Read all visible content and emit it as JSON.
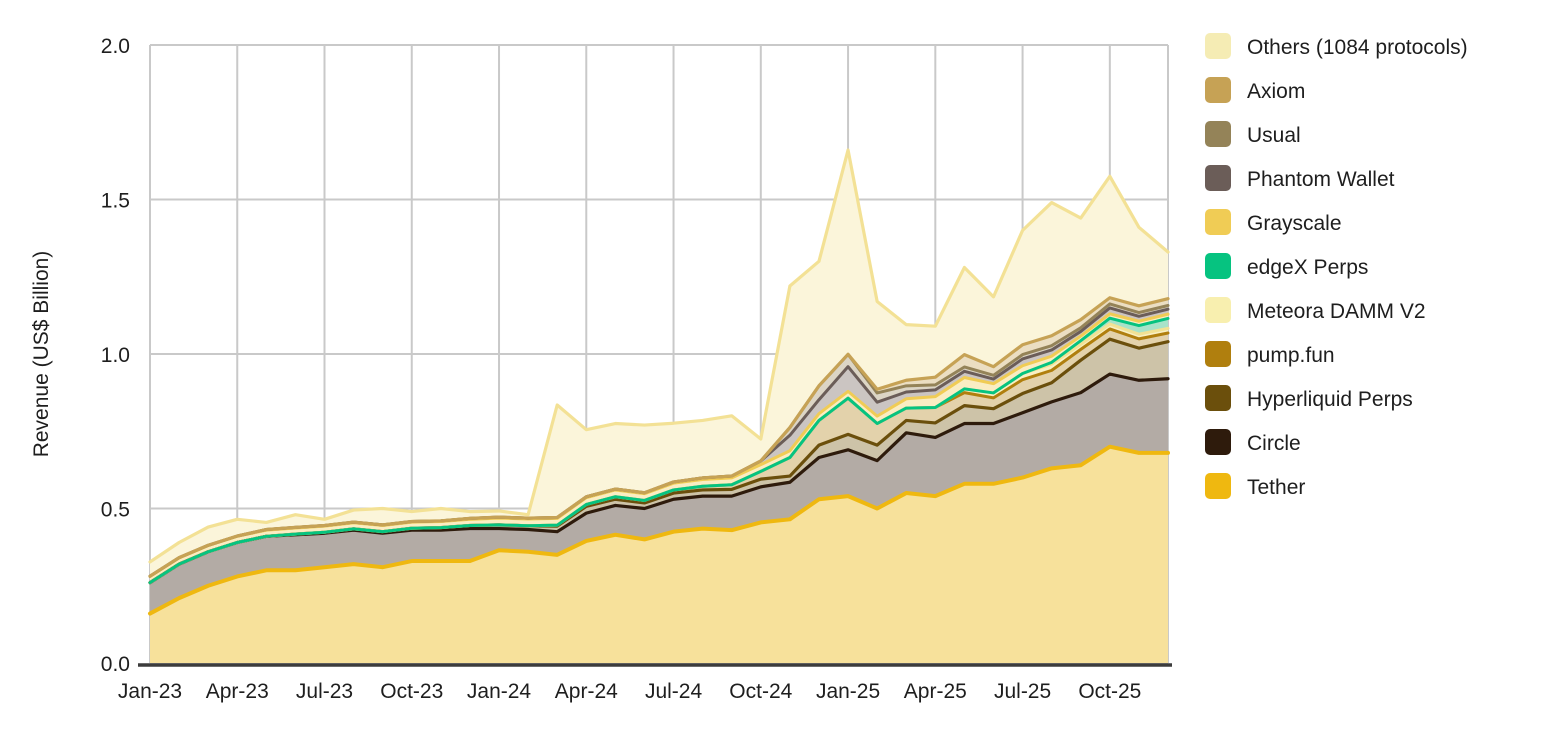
{
  "chart_data": {
    "type": "area",
    "stacked": true,
    "title": "",
    "xlabel": "",
    "ylabel": "Revenue (US$ Billion)",
    "ylim": [
      0,
      2.0
    ],
    "yticks": [
      "0.0",
      "0.5",
      "1.0",
      "1.5",
      "2.0"
    ],
    "ytick_values": [
      0.0,
      0.5,
      1.0,
      1.5,
      2.0
    ],
    "grid": true,
    "legend_position": "right",
    "months": [
      "Jan-23",
      "Feb-23",
      "Mar-23",
      "Apr-23",
      "May-23",
      "Jun-23",
      "Jul-23",
      "Aug-23",
      "Sep-23",
      "Oct-23",
      "Nov-23",
      "Dec-23",
      "Jan-24",
      "Feb-24",
      "Mar-24",
      "Apr-24",
      "May-24",
      "Jun-24",
      "Jul-24",
      "Aug-24",
      "Sep-24",
      "Oct-24",
      "Nov-24",
      "Dec-24",
      "Jan-25",
      "Feb-25",
      "Mar-25",
      "Apr-25",
      "May-25",
      "Jun-25",
      "Jul-25",
      "Aug-25",
      "Sep-25",
      "Oct-25",
      "Nov-25",
      "Dec-25"
    ],
    "x_tick_labels": [
      "Jan-23",
      "Apr-23",
      "Jul-23",
      "Oct-23",
      "Jan-24",
      "Apr-24",
      "Jul-24",
      "Oct-24",
      "Jan-25",
      "Apr-25",
      "Jul-25",
      "Oct-25"
    ],
    "colors": {
      "grid": "#c9c9c9",
      "axis": "#3c3c3c",
      "text": "#1e1e1e",
      "background": "#ffffff"
    },
    "series_bottom_to_top": [
      {
        "key": "tether",
        "name": "Tether",
        "line": "#EFB810",
        "fill": "#F7E19B",
        "swatch": "#EFB810",
        "line_width": 4,
        "values": [
          0.16,
          0.21,
          0.25,
          0.28,
          0.3,
          0.3,
          0.31,
          0.32,
          0.31,
          0.33,
          0.33,
          0.33,
          0.365,
          0.36,
          0.35,
          0.395,
          0.415,
          0.4,
          0.425,
          0.435,
          0.43,
          0.455,
          0.465,
          0.53,
          0.54,
          0.5,
          0.55,
          0.54,
          0.58,
          0.58,
          0.6,
          0.63,
          0.64,
          0.7,
          0.68,
          0.68
        ]
      },
      {
        "key": "circle",
        "name": "Circle",
        "line": "#2E1B0C",
        "fill": "#B3ABA5",
        "swatch": "#2E1B0C",
        "line_width": 3.2,
        "values": [
          0.1,
          0.11,
          0.11,
          0.11,
          0.11,
          0.115,
          0.11,
          0.11,
          0.11,
          0.1,
          0.1,
          0.105,
          0.07,
          0.072,
          0.075,
          0.09,
          0.095,
          0.1,
          0.105,
          0.105,
          0.11,
          0.115,
          0.12,
          0.135,
          0.15,
          0.155,
          0.195,
          0.19,
          0.195,
          0.195,
          0.21,
          0.215,
          0.235,
          0.235,
          0.235,
          0.24
        ]
      },
      {
        "key": "hyperliquid-perps",
        "name": "Hyperliquid Perps",
        "line": "#6B4F0C",
        "fill": "#CDC3A8",
        "swatch": "#6B4F0C",
        "line_width": 3.2,
        "values": [
          0,
          0,
          0,
          0,
          0,
          0.002,
          0.003,
          0.004,
          0.005,
          0.006,
          0.008,
          0.01,
          0.012,
          0.012,
          0.018,
          0.022,
          0.02,
          0.018,
          0.02,
          0.02,
          0.022,
          0.025,
          0.02,
          0.04,
          0.05,
          0.05,
          0.04,
          0.047,
          0.058,
          0.048,
          0.062,
          0.062,
          0.105,
          0.113,
          0.104,
          0.12
        ]
      },
      {
        "key": "pump-fun",
        "name": "pump.fun",
        "line": "#B07F0E",
        "fill": "#E3D2AB",
        "swatch": "#B07F0E",
        "line_width": 3,
        "values": [
          0,
          0,
          0,
          0,
          0,
          0,
          0,
          0,
          0,
          0,
          0,
          0,
          0,
          0,
          0.003,
          0.006,
          0.008,
          0.008,
          0.01,
          0.012,
          0.015,
          0.025,
          0.06,
          0.08,
          0.117,
          0.07,
          0.04,
          0.05,
          0.042,
          0.035,
          0.045,
          0.04,
          0.035,
          0.033,
          0.03,
          0.028
        ]
      },
      {
        "key": "meteora-damm-v2",
        "name": "Meteora DAMM V2",
        "line": "#F2E294",
        "fill": "#F9F0C4",
        "swatch": "#F8EFAF",
        "line_width": 3,
        "values": [
          0,
          0,
          0,
          0,
          0,
          0,
          0,
          0,
          0,
          0,
          0,
          0,
          0,
          0,
          0,
          0,
          0,
          0,
          0,
          0,
          0,
          0,
          0,
          0,
          0,
          0,
          0,
          0,
          0.012,
          0.016,
          0.02,
          0.02,
          0.016,
          0.016,
          0.015,
          0.015
        ]
      },
      {
        "key": "edgex-perps",
        "name": "edgeX Perps",
        "line": "#06C380",
        "fill": "#A8E3C9",
        "swatch": "#06C380",
        "line_width": 3,
        "values": [
          0,
          0,
          0,
          0,
          0,
          0,
          0,
          0,
          0,
          0,
          0,
          0,
          0,
          0,
          0,
          0,
          0,
          0,
          0,
          0,
          0,
          0,
          0,
          0,
          0,
          0,
          0,
          0,
          0,
          0,
          0,
          0.006,
          0.012,
          0.019,
          0.028,
          0.032
        ]
      },
      {
        "key": "grayscale",
        "name": "Grayscale",
        "line": "#F0CC55",
        "fill": "#FAEDC3",
        "swatch": "#F0CC55",
        "line_width": 3,
        "values": [
          0.02,
          0.02,
          0.02,
          0.02,
          0.02,
          0.02,
          0.02,
          0.02,
          0.02,
          0.02,
          0.02,
          0.02,
          0.022,
          0.022,
          0.022,
          0.022,
          0.022,
          0.022,
          0.022,
          0.022,
          0.022,
          0.022,
          0.022,
          0.022,
          0.022,
          0.024,
          0.03,
          0.035,
          0.037,
          0.03,
          0.025,
          0.02,
          0.015,
          0.014,
          0.014,
          0.014
        ]
      },
      {
        "key": "phantom-wallet",
        "name": "Phantom Wallet",
        "line": "#6B5D58",
        "fill": "#CBC5C2",
        "swatch": "#6B5D58",
        "line_width": 3,
        "values": [
          0.001,
          0.001,
          0.001,
          0.001,
          0.002,
          0.002,
          0.002,
          0.002,
          0.002,
          0.002,
          0.002,
          0.003,
          0.003,
          0.003,
          0.003,
          0.003,
          0.003,
          0.003,
          0.004,
          0.005,
          0.006,
          0.012,
          0.05,
          0.045,
          0.08,
          0.045,
          0.022,
          0.022,
          0.02,
          0.015,
          0.022,
          0.02,
          0.015,
          0.019,
          0.016,
          0.016
        ]
      },
      {
        "key": "usual",
        "name": "Usual",
        "line": "#948358",
        "fill": "#DCD5C5",
        "swatch": "#948358",
        "line_width": 3,
        "values": [
          0,
          0,
          0,
          0,
          0,
          0,
          0,
          0,
          0,
          0,
          0,
          0,
          0,
          0,
          0,
          0,
          0,
          0,
          0,
          0,
          0,
          0,
          0.025,
          0.045,
          0.04,
          0.03,
          0.02,
          0.016,
          0.014,
          0.012,
          0.014,
          0.014,
          0.012,
          0.013,
          0.012,
          0.012
        ]
      },
      {
        "key": "axiom",
        "name": "Axiom",
        "line": "#C6A255",
        "fill": "#EBDEC2",
        "swatch": "#C6A255",
        "line_width": 3.2,
        "values": [
          0,
          0,
          0,
          0,
          0,
          0,
          0,
          0,
          0,
          0,
          0,
          0,
          0,
          0,
          0,
          0,
          0,
          0,
          0,
          0,
          0,
          0,
          0,
          0,
          0,
          0.012,
          0.018,
          0.025,
          0.04,
          0.028,
          0.032,
          0.032,
          0.026,
          0.02,
          0.022,
          0.022
        ]
      },
      {
        "key": "others",
        "name": "Others (1084 protocols)",
        "line": "#F3E195",
        "fill": "#FBF5DA",
        "swatch": "#F5ECB4",
        "line_width": 3.2,
        "values": [
          0.046,
          0.049,
          0.059,
          0.054,
          0.023,
          0.041,
          0.02,
          0.039,
          0.053,
          0.032,
          0.04,
          0.022,
          0.02,
          0.011,
          0.364,
          0.217,
          0.212,
          0.219,
          0.19,
          0.186,
          0.195,
          0.071,
          0.458,
          0.403,
          0.661,
          0.284,
          0.18,
          0.165,
          0.282,
          0.226,
          0.37,
          0.431,
          0.329,
          0.393,
          0.254,
          0.151
        ]
      }
    ]
  }
}
